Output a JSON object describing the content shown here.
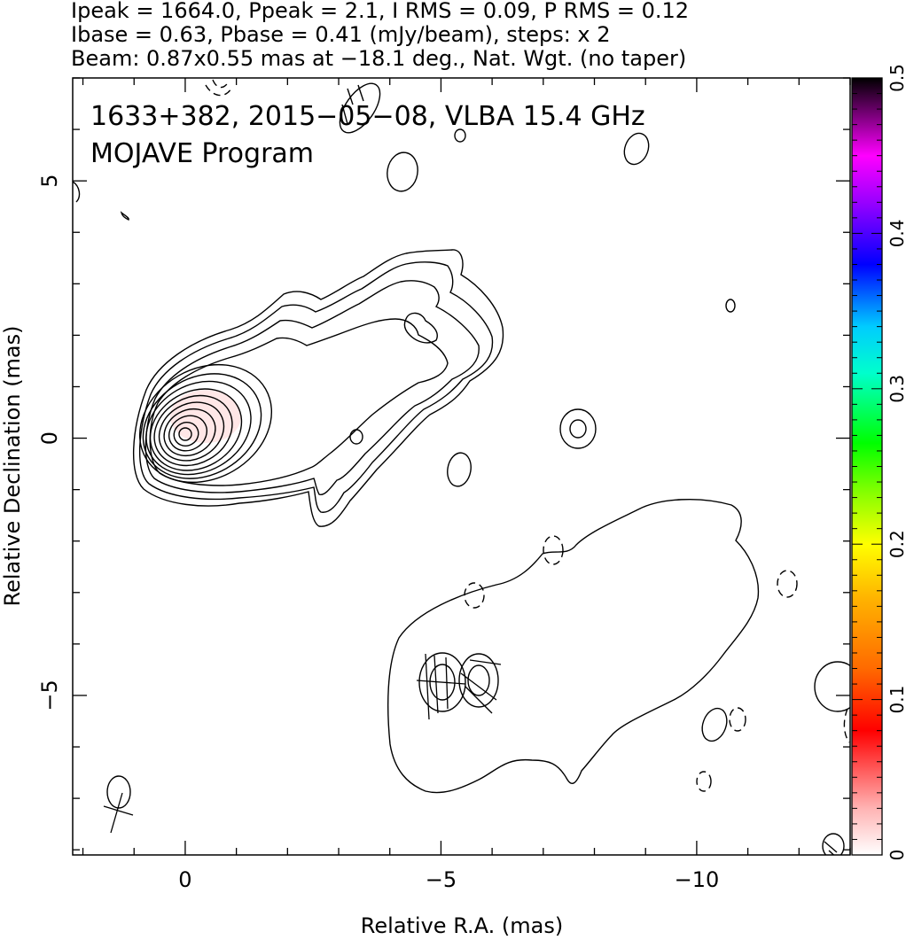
{
  "header": {
    "line1": "Ipeak = 1664.0, Ppeak = 2.1, I RMS = 0.09, P RMS = 0.12",
    "line2": "Ibase = 0.63, Pbase = 0.41 (mJy/beam), steps: x 2",
    "line3": "Beam: 0.87x0.55 mas at −18.1 deg., Nat. Wgt. (no taper)"
  },
  "annotation": {
    "source_line": "1633+382, 2015−05−08, VLBA 15.4 GHz",
    "program_line": "MOJAVE Program"
  },
  "chart_data": {
    "type": "contour",
    "xlabel": "Relative R.A. (mas)",
    "ylabel": "Relative Declination (mas)",
    "xlim": [
      2.2,
      -13.0
    ],
    "ylim": [
      -8.1,
      7.0
    ],
    "x_inverted": true,
    "x_ticks": [
      {
        "value": 0,
        "label": "0"
      },
      {
        "value": -5,
        "label": "−5"
      },
      {
        "value": -10,
        "label": "−10"
      }
    ],
    "y_ticks": [
      {
        "value": 5,
        "label": "5"
      },
      {
        "value": 0,
        "label": "0"
      },
      {
        "value": -5,
        "label": "−5"
      }
    ],
    "core": {
      "x": 0.0,
      "y": 0.0,
      "peak_intensity_mJy_per_beam": 1664.0
    },
    "contour_base_mJy_per_beam": 0.63,
    "contour_step_factor": 2,
    "polarization_peak_mJy_per_beam": 2.1,
    "colorbar": {
      "label_values": [
        0,
        0.1,
        0.2,
        0.3,
        0.4,
        0.5
      ],
      "tick_labels": [
        "0",
        "0.1",
        "0.2",
        "0.3",
        "0.4",
        "0.5"
      ],
      "range": [
        0,
        0.5
      ],
      "colors_low_to_high": [
        "#ffffff",
        "#ff0000",
        "#ff8c00",
        "#ffff00",
        "#00ff00",
        "#00ffff",
        "#0000ff",
        "#ff00ff",
        "#000000"
      ]
    },
    "grid": false,
    "legend": "none"
  }
}
